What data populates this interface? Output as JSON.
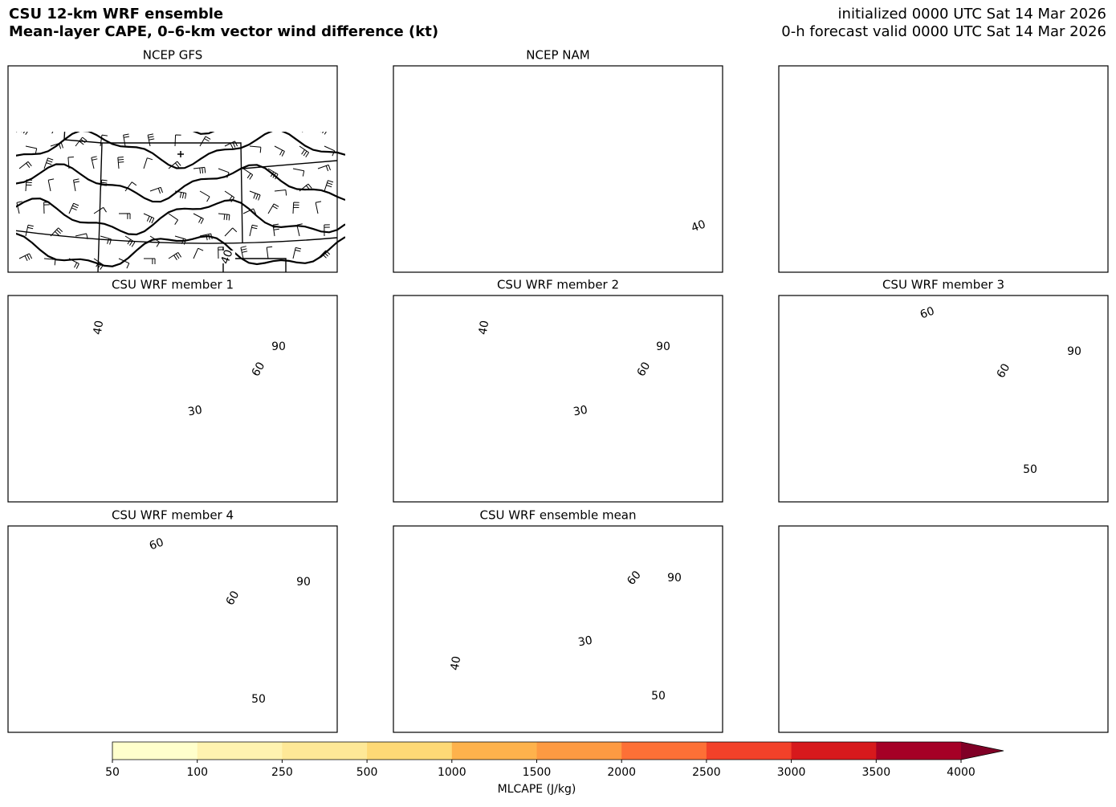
{
  "header": {
    "title": "CSU 12-km WRF ensemble",
    "subtitle": "Mean-layer CAPE, 0–6-km vector wind difference (kt)",
    "initialized": "initialized 0000 UTC Sat 14 Mar 2026",
    "valid": "0-h forecast valid 0000 UTC Sat 14 Mar 2026"
  },
  "panels": [
    {
      "title": "NCEP GFS",
      "contour_labels": [
        40
      ]
    },
    {
      "title": "NCEP NAM",
      "contour_labels": [
        40
      ]
    },
    {
      "title": "CSU WRF member 1",
      "contour_labels": [
        40,
        90,
        60,
        30
      ]
    },
    {
      "title": "CSU WRF member 2",
      "contour_labels": [
        40,
        90,
        60,
        30
      ]
    },
    {
      "title": "CSU WRF member 3",
      "contour_labels": [
        60,
        90,
        60,
        50
      ]
    },
    {
      "title": "CSU WRF member 4",
      "contour_labels": [
        60,
        90,
        60,
        50
      ]
    },
    {
      "title": "CSU WRF ensemble mean",
      "contour_labels": [
        60,
        90,
        30,
        40,
        50
      ]
    }
  ],
  "colorbar": {
    "label": "MLCAPE (J/kg)",
    "boundaries": [
      50,
      100,
      250,
      500,
      1000,
      1500,
      2000,
      2500,
      3000,
      3500,
      4000
    ],
    "colors": [
      "#ffffcc",
      "#fff3b0",
      "#fee897",
      "#fed976",
      "#feb24c",
      "#fd9a42",
      "#fd7036",
      "#f24129",
      "#d7191c",
      "#a50026"
    ],
    "extend_color": "#800026"
  }
}
